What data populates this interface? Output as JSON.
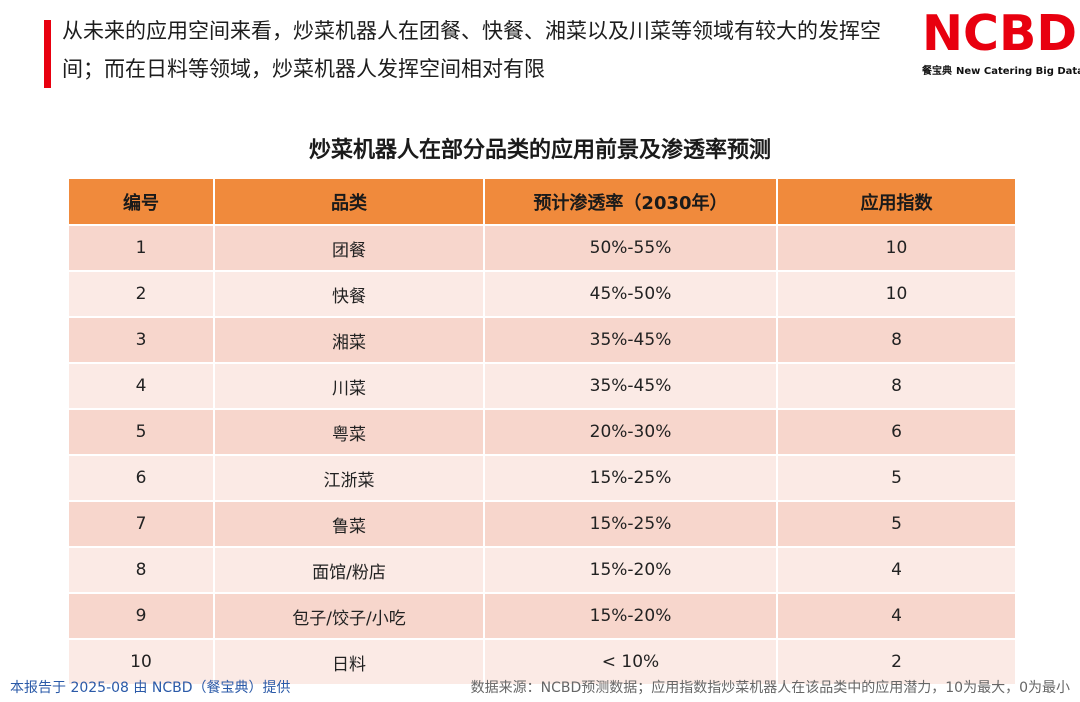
{
  "header": {
    "headline": "从未来的应用空间来看，炒菜机器人在团餐、快餐、湘菜以及川菜等领域有较大的发挥空间；而在日料等领域，炒菜机器人发挥空间相对有限",
    "accent_color": "#e8000f"
  },
  "logo": {
    "mark": "NCBD",
    "sub_cn": "餐宝典",
    "sub_en": "New Catering Big Data"
  },
  "table": {
    "title": "炒菜机器人在部分品类的应用前景及渗透率预测",
    "header_color": "#f08a3c",
    "columns": [
      "编号",
      "品类",
      "预计渗透率（2030年）",
      "应用指数"
    ],
    "rows": [
      [
        "1",
        "团餐",
        "50%-55%",
        "10"
      ],
      [
        "2",
        "快餐",
        "45%-50%",
        "10"
      ],
      [
        "3",
        "湘菜",
        "35%-45%",
        "8"
      ],
      [
        "4",
        "川菜",
        "35%-45%",
        "8"
      ],
      [
        "5",
        "粤菜",
        "20%-30%",
        "6"
      ],
      [
        "6",
        "江浙菜",
        "15%-25%",
        "5"
      ],
      [
        "7",
        "鲁菜",
        "15%-25%",
        "5"
      ],
      [
        "8",
        "面馆/粉店",
        "15%-20%",
        "4"
      ],
      [
        "9",
        "包子/饺子/小吃",
        "15%-20%",
        "4"
      ],
      [
        "10",
        "日料",
        "< 10%",
        "2"
      ]
    ]
  },
  "footer": {
    "left": "本报告于 2025-08 由 NCBD（餐宝典）提供",
    "right": "数据来源：NCBD预测数据；应用指数指炒菜机器人在该品类中的应用潜力，10为最大，0为最小"
  }
}
